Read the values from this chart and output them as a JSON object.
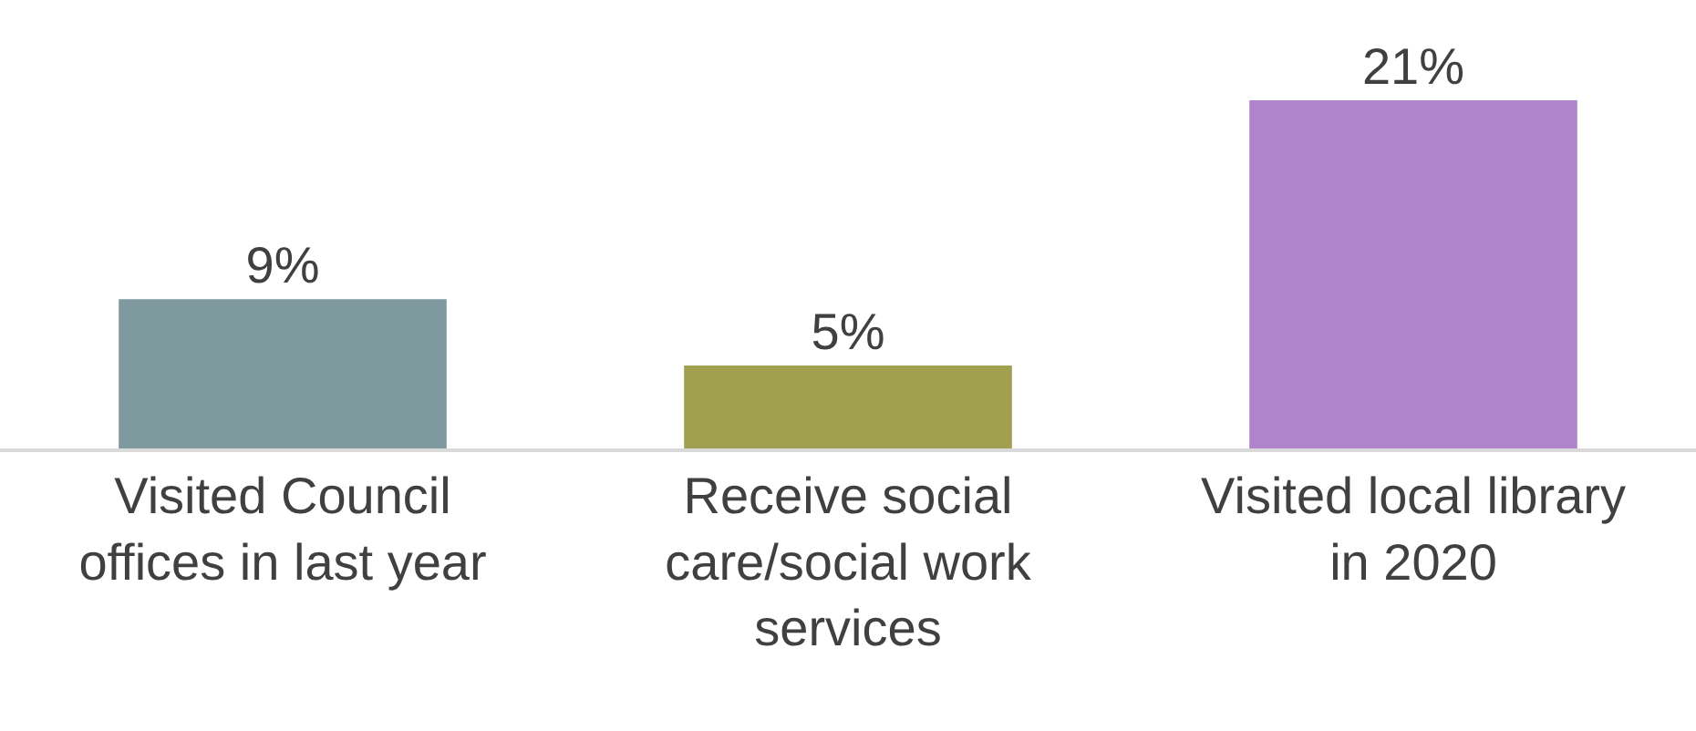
{
  "chart_data": {
    "type": "bar",
    "categories": [
      "Visited Council offices in last year",
      "Receive social care/social work services",
      "Visited local library in 2020"
    ],
    "values": [
      9,
      5,
      21
    ],
    "colors": [
      "#7f9a9e",
      "#a0a050",
      "#af84cb"
    ],
    "value_labels": [
      "9%",
      "5%",
      "21%"
    ],
    "grid": false,
    "legend": false
  }
}
